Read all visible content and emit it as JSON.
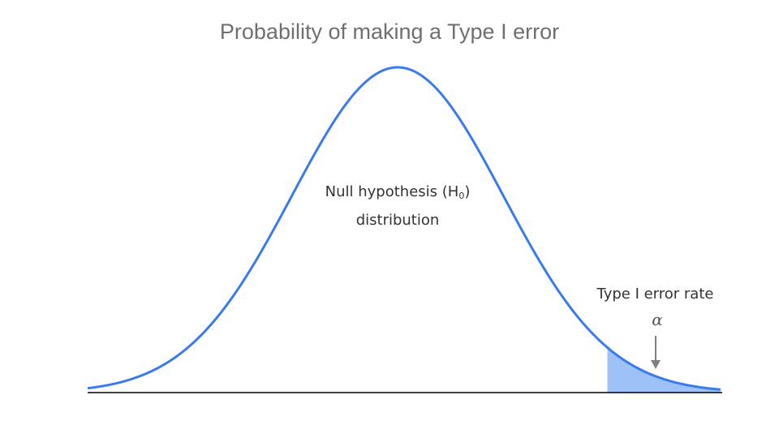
{
  "title": "Probability of making a Type I error",
  "curve_label": {
    "line1_prefix": "Null hypothesis (H",
    "subscript": "0",
    "line1_suffix": ")",
    "line2": "distribution"
  },
  "tail_label": "Type I error rate",
  "tail_symbol": "α",
  "colors": {
    "curve": "#3a7bea",
    "tail_fill": "#9ec1f7",
    "baseline": "#000000",
    "arrow": "#808080",
    "title": "#6f6f6f"
  }
}
